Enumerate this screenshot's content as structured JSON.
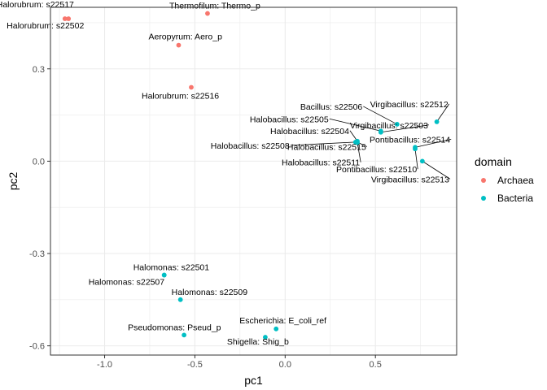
{
  "chart_data": {
    "type": "scatter",
    "xlabel": "pc1",
    "ylabel": "pc2",
    "xlim": [
      -1.3,
      0.95
    ],
    "ylim": [
      -0.63,
      0.5
    ],
    "x_ticks": [
      -1.0,
      -0.5,
      0.0,
      0.5
    ],
    "x_tick_labels": [
      "-1.0",
      "-0.5",
      "0.0",
      "0.5"
    ],
    "y_ticks": [
      -0.6,
      -0.3,
      0.0,
      0.3
    ],
    "y_tick_labels": [
      "-0.6",
      "-0.3",
      "0.0",
      "0.3"
    ],
    "grid": true,
    "legend": {
      "title": "domain",
      "position": "right",
      "entries": [
        {
          "name": "Archaea",
          "color": "#F8766D"
        },
        {
          "name": "Bacteria",
          "color": "#00BFC4"
        }
      ]
    },
    "points": [
      {
        "label": "Halorubrum: s22517",
        "domain": "Archaea",
        "x": -1.22,
        "y": 0.463
      },
      {
        "label": "Halorubrum: s22502",
        "domain": "Archaea",
        "x": -1.2,
        "y": 0.463
      },
      {
        "label": "Thermofilum: Thermo_p",
        "domain": "Archaea",
        "x": -0.43,
        "y": 0.48
      },
      {
        "label": "Aeropyrum: Aero_p",
        "domain": "Archaea",
        "x": -0.59,
        "y": 0.377
      },
      {
        "label": "Halorubrum: s22516",
        "domain": "Archaea",
        "x": -0.52,
        "y": 0.24
      },
      {
        "label": "Bacillus: s22506",
        "domain": "Bacteria",
        "x": 0.62,
        "y": 0.12
      },
      {
        "label": "Virgibacillus: s22512",
        "domain": "Bacteria",
        "x": 0.84,
        "y": 0.128
      },
      {
        "label": "Halobacillus: s22505",
        "domain": "Bacteria",
        "x": 0.53,
        "y": 0.098
      },
      {
        "label": "Virgibacillus: s22503",
        "domain": "Bacteria",
        "x": 0.53,
        "y": 0.094
      },
      {
        "label": "Halobacillus: s22504",
        "domain": "Bacteria",
        "x": 0.4,
        "y": 0.065
      },
      {
        "label": "Pontibacillus: s22514",
        "domain": "Bacteria",
        "x": 0.72,
        "y": 0.045
      },
      {
        "label": "Halobacillus: s22508",
        "domain": "Bacteria",
        "x": 0.39,
        "y": 0.062
      },
      {
        "label": "Halobacillus: s22515",
        "domain": "Bacteria",
        "x": 0.395,
        "y": 0.063
      },
      {
        "label": "Halobacillus: s22511",
        "domain": "Bacteria",
        "x": 0.4,
        "y": 0.06
      },
      {
        "label": "Pontibacillus: s22510",
        "domain": "Bacteria",
        "x": 0.72,
        "y": 0.04
      },
      {
        "label": "Virgibacillus: s22513",
        "domain": "Bacteria",
        "x": 0.76,
        "y": 0.0
      },
      {
        "label": "Halomonas: s22501",
        "domain": "Bacteria",
        "x": -0.67,
        "y": -0.37
      },
      {
        "label": "Halomonas: s22507",
        "domain": "Bacteria",
        "x": -0.67,
        "y": -0.37
      },
      {
        "label": "Halomonas: s22509",
        "domain": "Bacteria",
        "x": -0.58,
        "y": -0.45
      },
      {
        "label": "Pseudomonas: Pseud_p",
        "domain": "Bacteria",
        "x": -0.56,
        "y": -0.565
      },
      {
        "label": "Escherichia: E_coli_ref",
        "domain": "Bacteria",
        "x": -0.05,
        "y": -0.545
      },
      {
        "label": "Shigella: Shig_b",
        "domain": "Bacteria",
        "x": -0.11,
        "y": -0.572
      }
    ]
  }
}
